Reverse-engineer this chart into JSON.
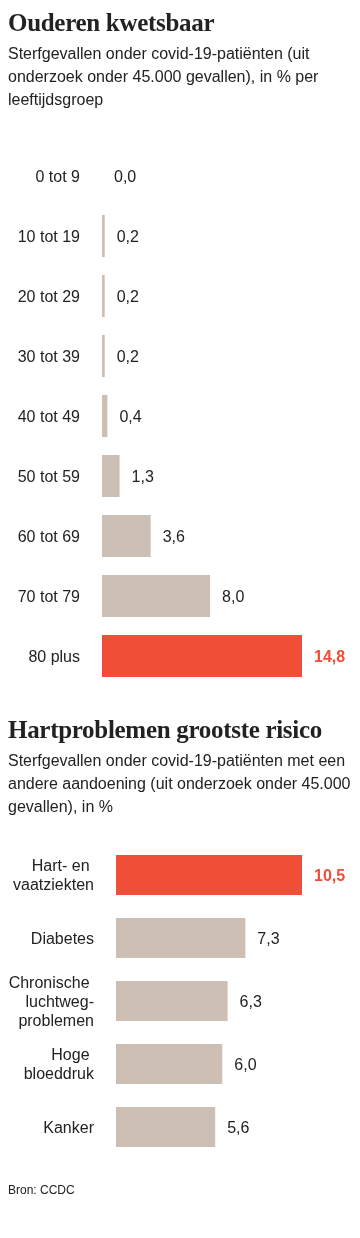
{
  "chart_data": [
    {
      "type": "bar",
      "orientation": "horizontal",
      "title": "Ouderen kwetsbaar",
      "subtitle": "Sterfgevallen onder covid-19-patiënten (uit onderzoek onder 45.000 gevallen), in % per leeftijdsgroep",
      "categories": [
        "0 tot 9",
        "10 tot 19",
        "20 tot 29",
        "30 tot 39",
        "40 tot 49",
        "50 tot 59",
        "60 tot 69",
        "70 tot 79",
        "80 plus"
      ],
      "values": [
        0.0,
        0.2,
        0.2,
        0.2,
        0.4,
        1.3,
        3.6,
        8.0,
        14.8
      ],
      "value_labels": [
        "0,0",
        "0,2",
        "0,2",
        "0,2",
        "0,4",
        "1,3",
        "3,6",
        "8,0",
        "14,8"
      ],
      "colors": [
        "#cdbfb4",
        "#cdbfb4",
        "#cdbfb4",
        "#cdbfb4",
        "#cdbfb4",
        "#cdbfb4",
        "#cdbfb4",
        "#cdbfb4",
        "#f04e37"
      ]
    },
    {
      "type": "bar",
      "orientation": "horizontal",
      "title": "Hartproblemen grootste risico",
      "subtitle": "Sterfgevallen onder covid-19-patiënten met een andere aandoening (uit onderzoek onder 45.000 gevallen), in %",
      "categories": [
        "Hart- en vaatziekten",
        "Diabetes",
        "Chronische luchtweg-problemen",
        "Hoge bloeddruk",
        "Kanker"
      ],
      "values": [
        10.5,
        7.3,
        6.3,
        6.0,
        5.6
      ],
      "value_labels": [
        "10,5",
        "7,3",
        "6,3",
        "6,0",
        "5,6"
      ],
      "colors": [
        "#f04e37",
        "#cdbfb4",
        "#cdbfb4",
        "#cdbfb4",
        "#cdbfb4"
      ],
      "annotations": [
        "Bron: CCDC"
      ]
    }
  ]
}
